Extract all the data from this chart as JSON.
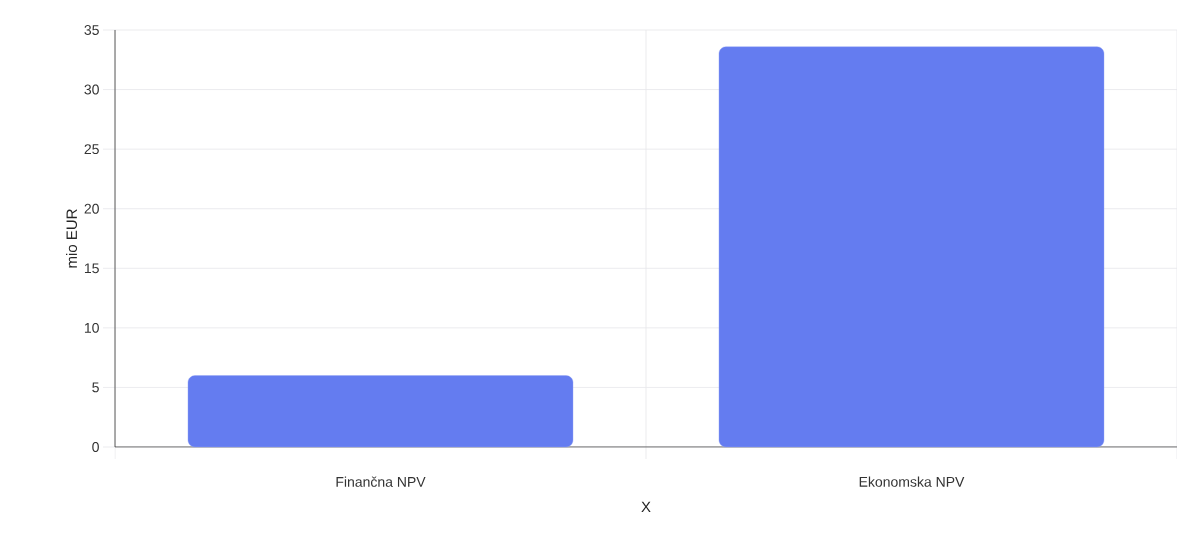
{
  "chart_data": {
    "type": "bar",
    "xlabel": "X",
    "ylabel": "mio EUR",
    "categories": [
      "Finančna NPV",
      "Ekonomska NPV"
    ],
    "values": [
      6.0,
      33.6
    ],
    "color": "#647cf0",
    "ylim": [
      0,
      35
    ],
    "yticks": [
      0,
      5,
      10,
      15,
      20,
      25,
      30,
      35
    ],
    "grid": true
  }
}
